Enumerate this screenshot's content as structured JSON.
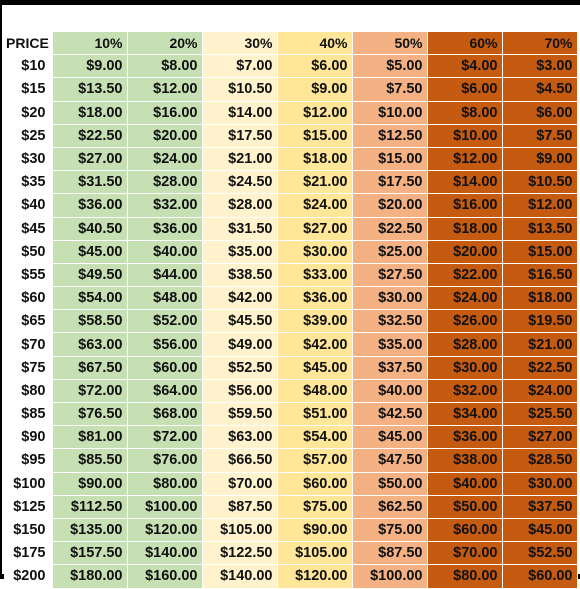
{
  "table": {
    "headers": [
      "PRICE",
      "10%",
      "20%",
      "30%",
      "40%",
      "50%",
      "60%",
      "70%"
    ],
    "rows": [
      [
        "$10",
        "$9.00",
        "$8.00",
        "$7.00",
        "$6.00",
        "$5.00",
        "$4.00",
        "$3.00"
      ],
      [
        "$15",
        "$13.50",
        "$12.00",
        "$10.50",
        "$9.00",
        "$7.50",
        "$6.00",
        "$4.50"
      ],
      [
        "$20",
        "$18.00",
        "$16.00",
        "$14.00",
        "$12.00",
        "$10.00",
        "$8.00",
        "$6.00"
      ],
      [
        "$25",
        "$22.50",
        "$20.00",
        "$17.50",
        "$15.00",
        "$12.50",
        "$10.00",
        "$7.50"
      ],
      [
        "$30",
        "$27.00",
        "$24.00",
        "$21.00",
        "$18.00",
        "$15.00",
        "$12.00",
        "$9.00"
      ],
      [
        "$35",
        "$31.50",
        "$28.00",
        "$24.50",
        "$21.00",
        "$17.50",
        "$14.00",
        "$10.50"
      ],
      [
        "$40",
        "$36.00",
        "$32.00",
        "$28.00",
        "$24.00",
        "$20.00",
        "$16.00",
        "$12.00"
      ],
      [
        "$45",
        "$40.50",
        "$36.00",
        "$31.50",
        "$27.00",
        "$22.50",
        "$18.00",
        "$13.50"
      ],
      [
        "$50",
        "$45.00",
        "$40.00",
        "$35.00",
        "$30.00",
        "$25.00",
        "$20.00",
        "$15.00"
      ],
      [
        "$55",
        "$49.50",
        "$44.00",
        "$38.50",
        "$33.00",
        "$27.50",
        "$22.00",
        "$16.50"
      ],
      [
        "$60",
        "$54.00",
        "$48.00",
        "$42.00",
        "$36.00",
        "$30.00",
        "$24.00",
        "$18.00"
      ],
      [
        "$65",
        "$58.50",
        "$52.00",
        "$45.50",
        "$39.00",
        "$32.50",
        "$26.00",
        "$19.50"
      ],
      [
        "$70",
        "$63.00",
        "$56.00",
        "$49.00",
        "$42.00",
        "$35.00",
        "$28.00",
        "$21.00"
      ],
      [
        "$75",
        "$67.50",
        "$60.00",
        "$52.50",
        "$45.00",
        "$37.50",
        "$30.00",
        "$22.50"
      ],
      [
        "$80",
        "$72.00",
        "$64.00",
        "$56.00",
        "$48.00",
        "$40.00",
        "$32.00",
        "$24.00"
      ],
      [
        "$85",
        "$76.50",
        "$68.00",
        "$59.50",
        "$51.00",
        "$42.50",
        "$34.00",
        "$25.50"
      ],
      [
        "$90",
        "$81.00",
        "$72.00",
        "$63.00",
        "$54.00",
        "$45.00",
        "$36.00",
        "$27.00"
      ],
      [
        "$95",
        "$85.50",
        "$76.00",
        "$66.50",
        "$57.00",
        "$47.50",
        "$38.00",
        "$28.50"
      ],
      [
        "$100",
        "$90.00",
        "$80.00",
        "$70.00",
        "$60.00",
        "$50.00",
        "$40.00",
        "$30.00"
      ],
      [
        "$125",
        "$112.50",
        "$100.00",
        "$87.50",
        "$75.00",
        "$62.50",
        "$50.00",
        "$37.50"
      ],
      [
        "$150",
        "$135.00",
        "$120.00",
        "$105.00",
        "$90.00",
        "$75.00",
        "$60.00",
        "$45.00"
      ],
      [
        "$175",
        "$157.50",
        "$140.00",
        "$122.50",
        "$105.00",
        "$87.50",
        "$70.00",
        "$52.50"
      ],
      [
        "$200",
        "$180.00",
        "$160.00",
        "$140.00",
        "$120.00",
        "$100.00",
        "$80.00",
        "$60.00"
      ]
    ],
    "column_colors": [
      "#ffffff",
      "#c6e0b4",
      "#c6e0b4",
      "#fff2cc",
      "#ffe699",
      "#f4b183",
      "#c55a11",
      "#c55a11"
    ]
  }
}
